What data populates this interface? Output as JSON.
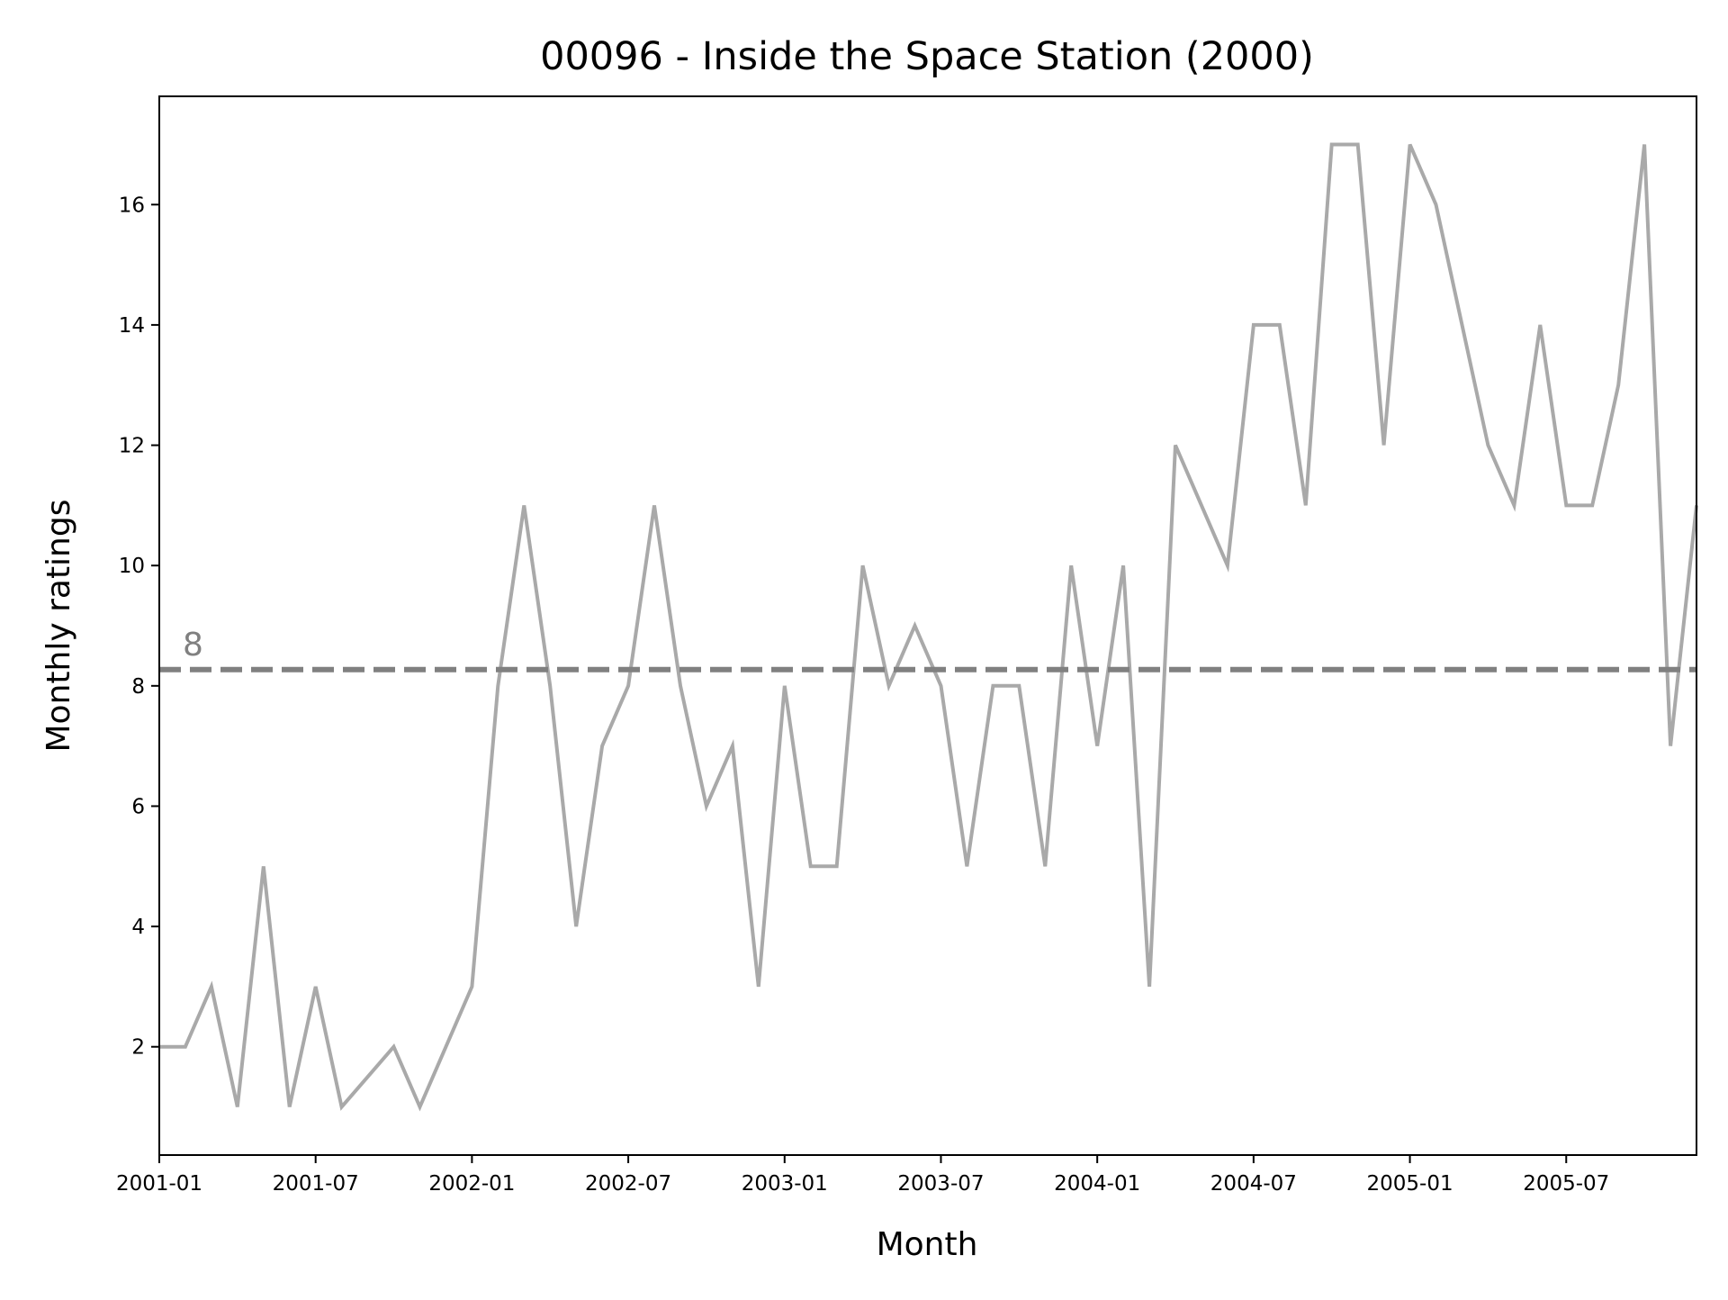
{
  "chart_data": {
    "type": "line",
    "title": "00096 - Inside the Space Station (2000)",
    "xlabel": "Month",
    "ylabel": "Monthly ratings",
    "x_tick_labels": [
      "2001-01",
      "2001-07",
      "2002-01",
      "2002-07",
      "2003-01",
      "2003-07",
      "2004-01",
      "2004-07",
      "2005-01",
      "2005-07"
    ],
    "y_tick_labels": [
      "2",
      "4",
      "6",
      "8",
      "10",
      "12",
      "14",
      "16"
    ],
    "xlim": [
      "2001-01",
      "2005-12"
    ],
    "ylim": [
      0.2,
      17.8
    ],
    "grid": false,
    "x": [
      "2001-01",
      "2001-02",
      "2001-03",
      "2001-04",
      "2001-05",
      "2001-06",
      "2001-07",
      "2001-08",
      "2001-10",
      "2001-11",
      "2002-01",
      "2002-02",
      "2002-03",
      "2002-04",
      "2002-05",
      "2002-06",
      "2002-07",
      "2002-08",
      "2002-09",
      "2002-10",
      "2002-11",
      "2002-12",
      "2003-01",
      "2003-02",
      "2003-03",
      "2003-04",
      "2003-05",
      "2003-06",
      "2003-07",
      "2003-08",
      "2003-09",
      "2003-10",
      "2003-11",
      "2003-12",
      "2004-01",
      "2004-02",
      "2004-03",
      "2004-04",
      "2004-06",
      "2004-07",
      "2004-08",
      "2004-09",
      "2004-10",
      "2004-11",
      "2004-12",
      "2005-01",
      "2005-02",
      "2005-03",
      "2005-04",
      "2005-05",
      "2005-06",
      "2005-07",
      "2005-08",
      "2005-09",
      "2005-10",
      "2005-11",
      "2005-12"
    ],
    "series": [
      {
        "color": "#a9a9a9",
        "values": [
          2,
          2,
          3,
          1,
          5,
          1,
          3,
          1,
          2,
          1,
          3,
          8,
          11,
          8,
          4,
          7,
          8,
          11,
          8,
          6,
          7,
          3,
          8,
          5,
          5,
          10,
          8,
          9,
          8,
          5,
          8,
          8,
          5,
          10,
          7,
          10,
          3,
          12,
          10,
          14,
          14,
          11,
          17,
          17,
          12,
          17,
          16,
          14,
          12,
          11,
          14,
          11,
          11,
          13,
          17,
          7,
          11
        ]
      }
    ],
    "reference_line": {
      "value": 8.27,
      "label": "8",
      "style": "dashed",
      "color": "#808080"
    }
  }
}
